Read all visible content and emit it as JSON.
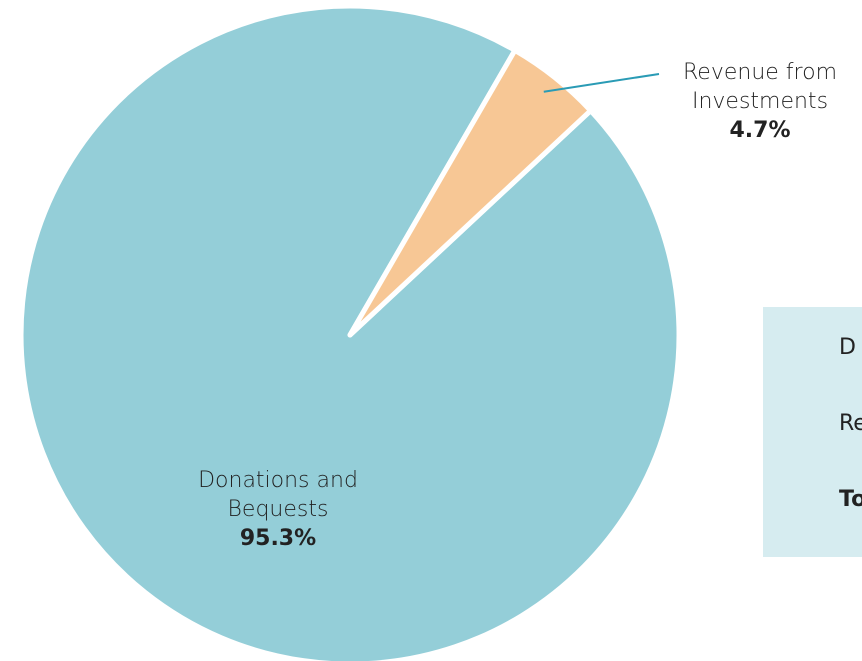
{
  "chart_data": {
    "type": "pie",
    "title": "",
    "categories": [
      "Donations and Bequests",
      "Revenue from Investments"
    ],
    "values": [
      95.3,
      4.7
    ],
    "unit": "%",
    "colors": [
      "#94ced8",
      "#f7c795"
    ],
    "labels": [
      {
        "category": "Donations and Bequests",
        "line1": "Donations and",
        "line2": "Bequests",
        "pct": "95.3%"
      },
      {
        "category": "Revenue from Investments",
        "line1": "Revenue from",
        "line2": "Investments",
        "pct": "4.7%"
      }
    ],
    "leader_line_color": "#2a9bb5"
  },
  "summary_panel": {
    "rows": [
      "D",
      "Re",
      "To"
    ]
  }
}
